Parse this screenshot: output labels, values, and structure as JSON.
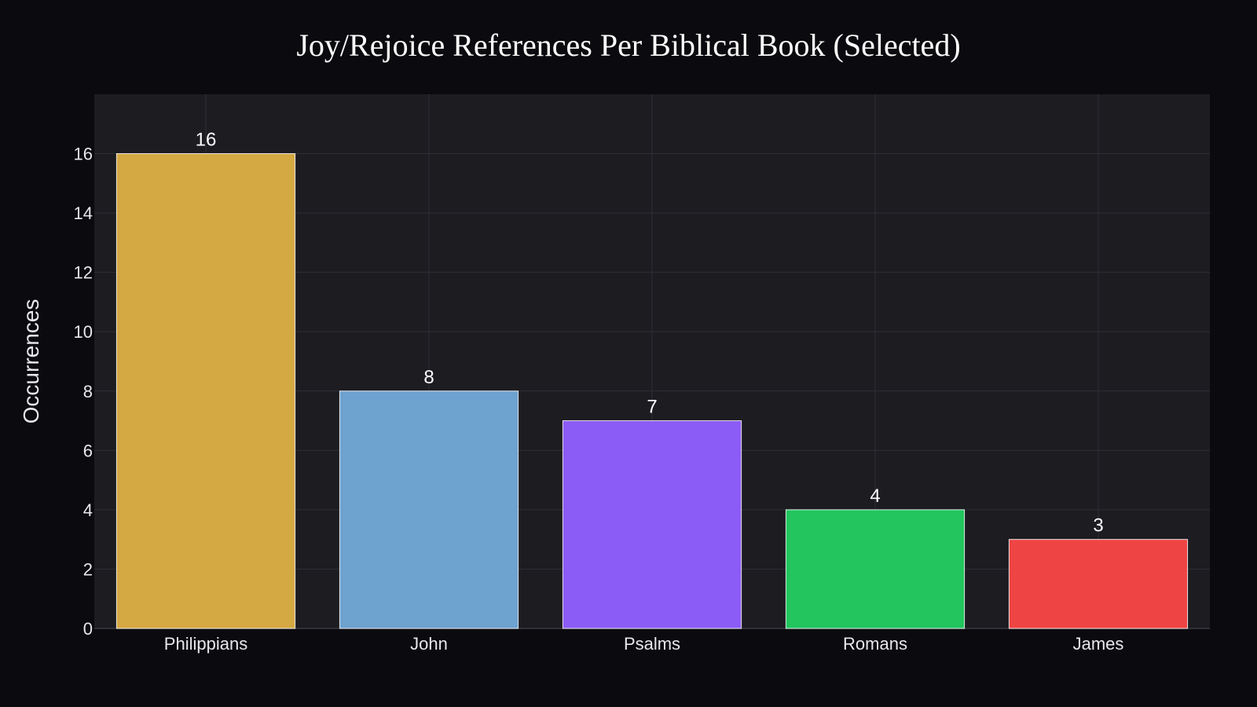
{
  "chart_data": {
    "type": "bar",
    "title": "Joy/Rejoice References Per Biblical Book (Selected)",
    "xlabel": "",
    "ylabel": "Occurrences",
    "categories": [
      "Philippians",
      "John",
      "Psalms",
      "Romans",
      "James"
    ],
    "values": [
      16,
      8,
      7,
      4,
      3
    ],
    "colors": [
      "#d4a843",
      "#6ea2cf",
      "#8b5cf6",
      "#22c55e",
      "#ef4444"
    ],
    "ylim": [
      0,
      18
    ],
    "yticks": [
      0,
      2,
      4,
      6,
      8,
      10,
      12,
      14,
      16
    ],
    "grid": true,
    "legend": "none",
    "plot_background": "#1c1c21",
    "page_background": "#0b0b0f"
  }
}
